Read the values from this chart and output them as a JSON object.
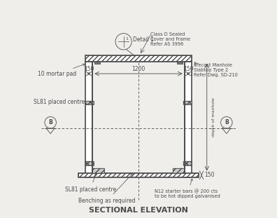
{
  "title": "SECTIONAL ELEVATION",
  "background_color": "#f0eeeb",
  "line_color": "#4a4a4a",
  "figsize": [
    3.96,
    3.11
  ],
  "dpi": 100,
  "annotations": {
    "detail1": "Detail 1",
    "cover_frame": "Class D Sealed\nCover and Frame\nRefer AS 3996",
    "precast": "Precast Manhole\nSlabtop Type 2\nRefer Dwg. SD-210",
    "mortar_pad": "10 mortar pad",
    "sl81_top": "SL81 placed centre",
    "sl81_bottom": "SL81 placed centre",
    "benching": "Benching as required",
    "n12_bars": "N12 starter bars @ 200 cts\nto be hot dipped galvanised",
    "dim_150_left": "150",
    "dim_1200": "1200",
    "dim_150_right": "150",
    "dim_150_bottom": "150",
    "depth_label": "depth of manhole",
    "section_B": "B"
  }
}
